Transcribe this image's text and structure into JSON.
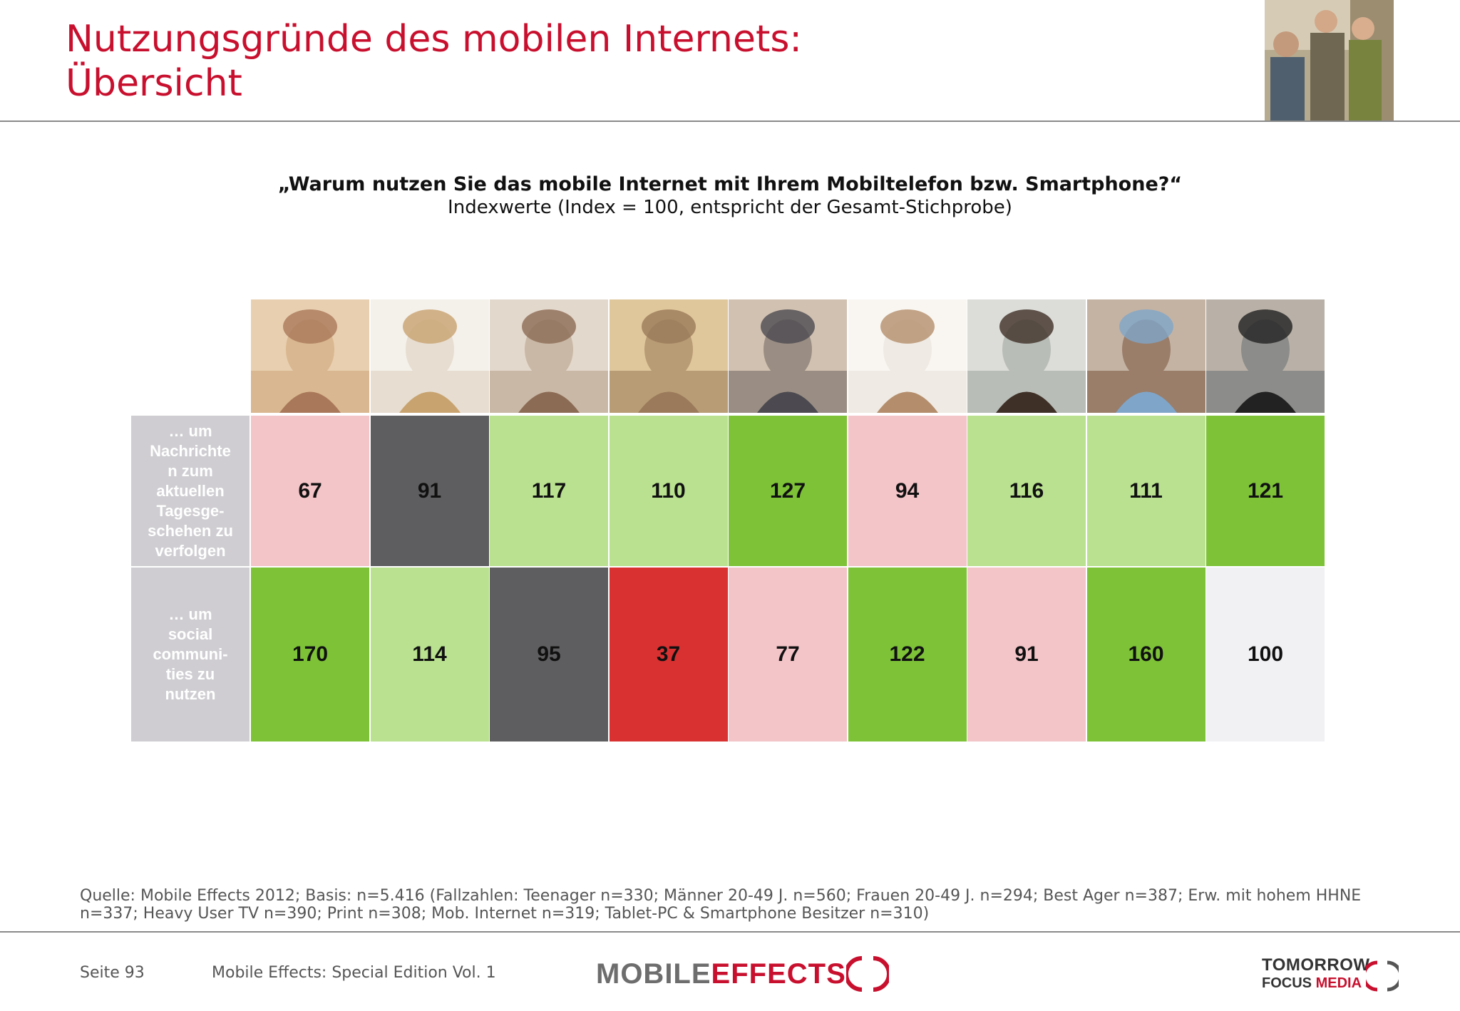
{
  "header": {
    "title_line1": "Nutzungsgründe des mobilen Internets:",
    "title_line2": "Übersicht"
  },
  "chart_data": {
    "type": "table",
    "title": "„Warum nutzen Sie das mobile Internet mit Ihrem Mobiltelefon bzw. Smartphone?“",
    "subtitle": "Indexwerte (Index = 100, entspricht der Gesamt-Stichprobe)",
    "rows": [
      {
        "label": "… um\nNachrichte\nn zum\naktuellen\nTagesge-\nschehen zu\nverfolgen",
        "values": [
          67,
          91,
          117,
          110,
          127,
          94,
          116,
          111,
          121
        ]
      },
      {
        "label": "… um\nsocial\ncommuni-\nties zu\nnutzen",
        "values": [
          170,
          114,
          95,
          37,
          77,
          122,
          91,
          160,
          100
        ]
      }
    ],
    "colors": {
      "strong_positive": "#7dc237",
      "positive": "#b9e18f",
      "neutral": "#f1f1f4",
      "slight_negative": "#5e5e60",
      "negative": "#f3c4c8",
      "strong_negative": "#d93131"
    },
    "row_colors": [
      [
        "negative",
        "slight_negative",
        "positive",
        "positive",
        "strong_positive",
        "negative",
        "positive",
        "positive",
        "strong_positive"
      ],
      [
        "strong_positive",
        "positive",
        "slight_negative",
        "strong_negative",
        "negative",
        "strong_positive",
        "negative",
        "strong_positive",
        "neutral"
      ]
    ]
  },
  "footer": {
    "source": "Quelle: Mobile Effects 2012; Basis: n=5.416 (Fallzahlen: Teenager n=330; Männer 20-49 J. n=560; Frauen 20-49 J. n=294; Best Ager n=387; Erw. mit hohem HHNE n=337; Heavy User TV n=390; Print n=308; Mob. Internet n=319; Tablet-PC & Smartphone Besitzer n=310)",
    "page": "Seite 93",
    "edition": "Mobile Effects: Special Edition Vol. 1",
    "logo_mobile": "MOBILE",
    "logo_effects": "EFFECTS",
    "logo_tomorrow": "TOMORROW",
    "logo_focus": "FOCUS",
    "logo_media": "MEDIA"
  },
  "photos": [
    "teenager-girl-photo",
    "woman-photo",
    "man-on-phone-photo",
    "senior-couple-photo",
    "businessman-photo",
    "tv-viewer-photo",
    "newspaper-reader-photo",
    "tablet-user-photo",
    "smartphone-owner-photo"
  ]
}
